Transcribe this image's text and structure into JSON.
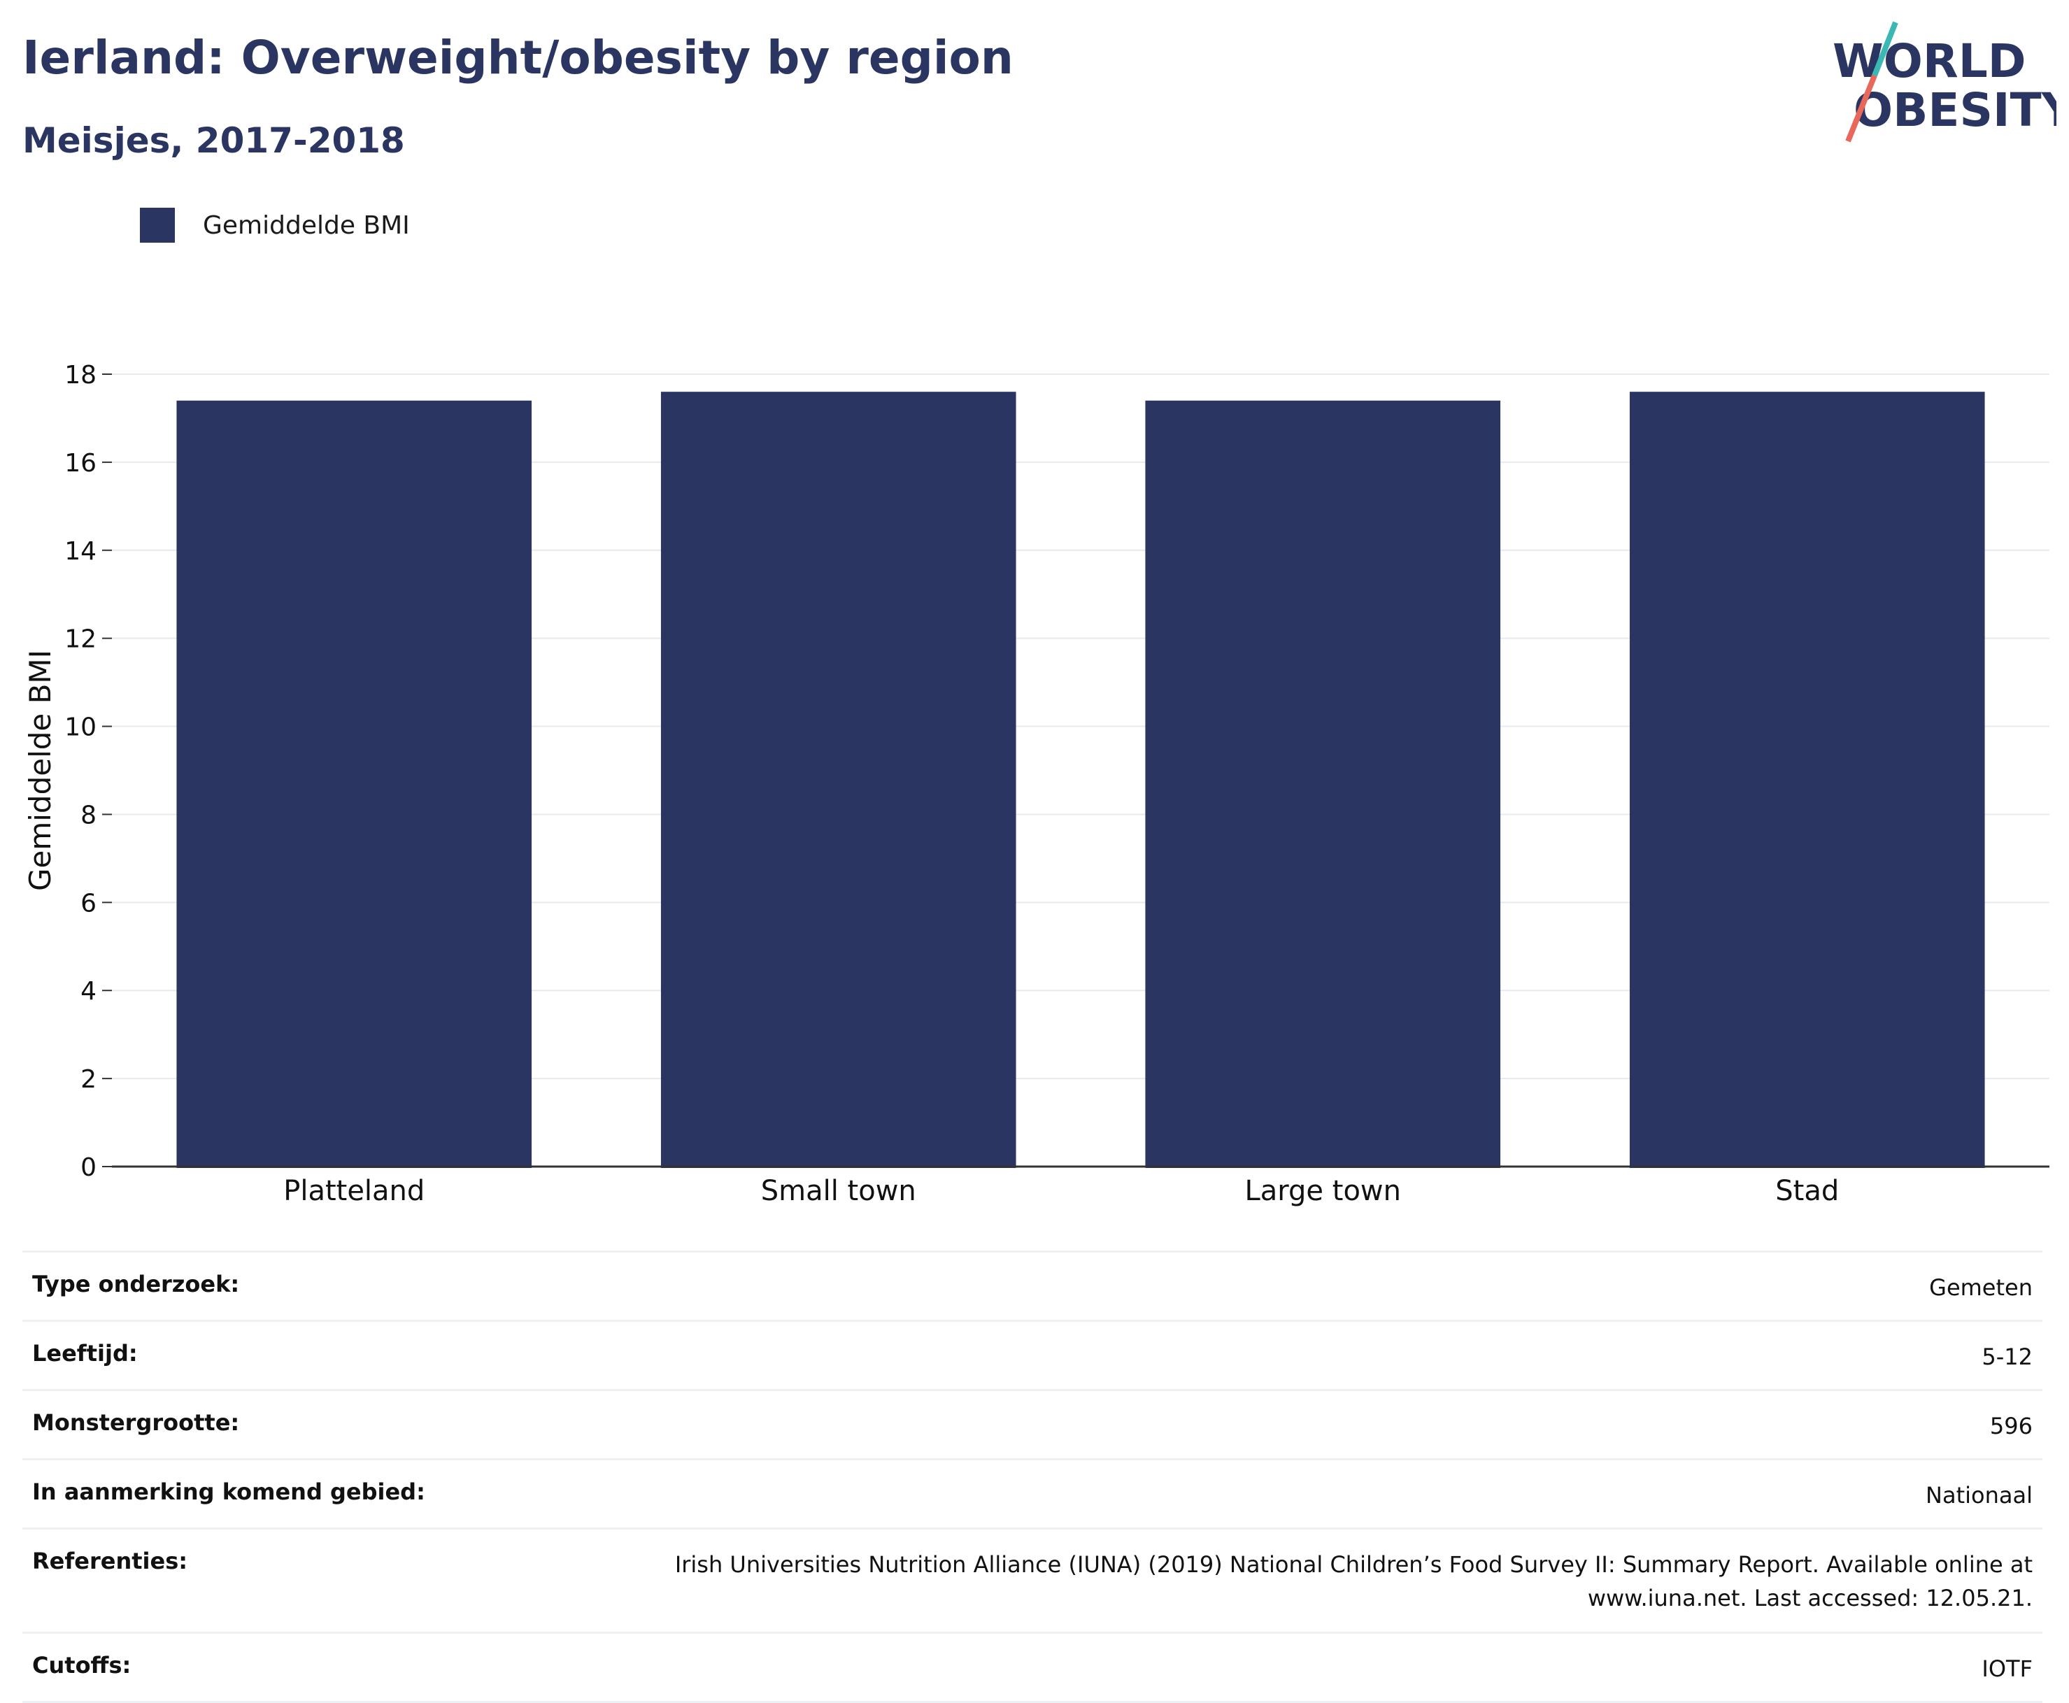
{
  "header": {
    "title": "Ierland: Overweight/obesity by region",
    "subtitle": "Meisjes, 2017-2018"
  },
  "logo": {
    "line1": "WORLD",
    "line2": "OBESITY",
    "colors": {
      "text": "#2b3562",
      "slash_top": "#3bb8b4",
      "slash_bottom": "#e8695b"
    }
  },
  "legend": {
    "label": "Gemiddelde BMI",
    "color": "#2b3562"
  },
  "chart_data": {
    "type": "bar",
    "categories": [
      "Platteland",
      "Small town",
      "Large town",
      "Stad"
    ],
    "series": [
      {
        "name": "Gemiddelde BMI",
        "values": [
          17.4,
          17.6,
          17.4,
          17.6
        ],
        "color": "#2b3562"
      }
    ],
    "xlabel": "",
    "ylabel": "Gemiddelde BMI",
    "ylim": [
      0,
      18
    ],
    "yticks": [
      0,
      2,
      4,
      6,
      8,
      10,
      12,
      14,
      16,
      18
    ],
    "grid": true,
    "legend_position": "top-left"
  },
  "meta": {
    "rows": [
      {
        "label": "Type onderzoek:",
        "value": "Gemeten"
      },
      {
        "label": "Leeftijd:",
        "value": "5-12"
      },
      {
        "label": "Monstergrootte:",
        "value": "596"
      },
      {
        "label": "In aanmerking komend gebied:",
        "value": "Nationaal"
      },
      {
        "label": "Referenties:",
        "value": "Irish Universities Nutrition Alliance (IUNA) (2019) National Children’s Food Survey II: Summary Report. Available online at www.iuna.net. Last accessed: 12.05.21."
      },
      {
        "label": "Cutoffs:",
        "value": "IOTF"
      }
    ]
  }
}
